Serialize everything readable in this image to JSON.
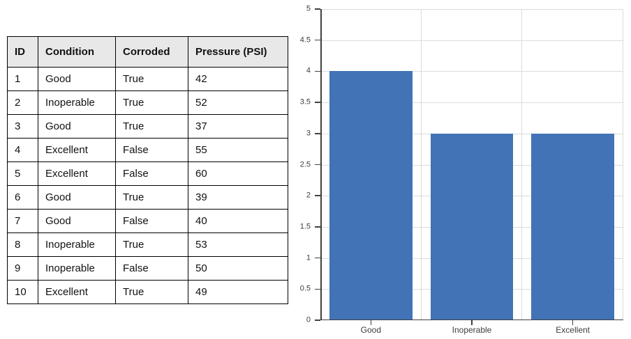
{
  "table": {
    "columns": [
      "ID",
      "Condition",
      "Corroded",
      "Pressure (PSI)"
    ],
    "rows": [
      [
        "1",
        "Good",
        "True",
        "42"
      ],
      [
        "2",
        "Inoperable",
        "True",
        "52"
      ],
      [
        "3",
        "Good",
        "True",
        "37"
      ],
      [
        "4",
        "Excellent",
        "False",
        "55"
      ],
      [
        "5",
        "Excellent",
        "False",
        "60"
      ],
      [
        "6",
        "Good",
        "True",
        "39"
      ],
      [
        "7",
        "Good",
        "False",
        "40"
      ],
      [
        "8",
        "Inoperable",
        "True",
        "53"
      ],
      [
        "9",
        "Inoperable",
        "False",
        "50"
      ],
      [
        "10",
        "Excellent",
        "True",
        "49"
      ]
    ],
    "header_bg": "#E8E8E8",
    "border_color": "#000000"
  },
  "chart_data": {
    "type": "bar",
    "categories": [
      "Good",
      "Inoperable",
      "Excellent"
    ],
    "values": [
      4,
      3,
      3
    ],
    "title": "",
    "xlabel": "",
    "ylabel": "",
    "ylim": [
      0,
      5
    ],
    "ytick_step": 0.5,
    "ytick_labels": [
      "0",
      "0.5",
      "1",
      "1.5",
      "2",
      "2.5",
      "3",
      "3.5",
      "4",
      "4.5",
      "5"
    ],
    "grid": true,
    "legend": "none",
    "bar_color": "#4273B6",
    "gridline_color": "#DBDBDB",
    "axis_color": "#404040",
    "label_color": "#3D3D3D",
    "bar_width_fraction": 0.82
  }
}
